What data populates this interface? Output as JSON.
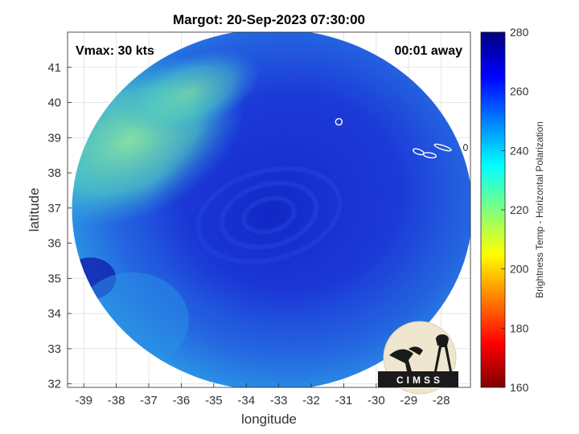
{
  "chart_data": {
    "type": "heatmap",
    "title": "Margot: 20-Sep-2023 07:30:00",
    "xlabel": "longitude",
    "ylabel": "latitude",
    "xlim": [
      -39.5,
      -27.1
    ],
    "ylim": [
      31.9,
      42.0
    ],
    "xticks": [
      -39,
      -38,
      -37,
      -36,
      -35,
      -34,
      -33,
      -32,
      -31,
      -30,
      -29,
      -28
    ],
    "yticks": [
      32,
      33,
      34,
      35,
      36,
      37,
      38,
      39,
      40,
      41
    ],
    "grid": true,
    "annotations": {
      "vmax": "Vmax: 30 kts",
      "away": "00:01 away"
    },
    "colorbar": {
      "label": "Brightness Temp - Horizontal Polarization",
      "min": 160,
      "max": 280,
      "ticks": [
        160,
        180,
        200,
        220,
        240,
        260,
        280
      ],
      "colormap": "jet"
    },
    "storm_center": {
      "lon": -33.3,
      "lat": 36.8
    },
    "swath_center": {
      "lon": -33.2,
      "lat": 36.95
    },
    "logo": "CIMSS"
  },
  "colors": {
    "cold": "#1a2fd0",
    "core": "#1c36d6",
    "warm_edge": "#20a8e8",
    "warm_nw": "#6fe0a0",
    "spot_sw": "#1424b0",
    "jet": [
      "#00007f",
      "#0000ff",
      "#007fff",
      "#00ffff",
      "#7fff7f",
      "#ffff00",
      "#ff7f00",
      "#ff0000",
      "#7f0000"
    ]
  }
}
